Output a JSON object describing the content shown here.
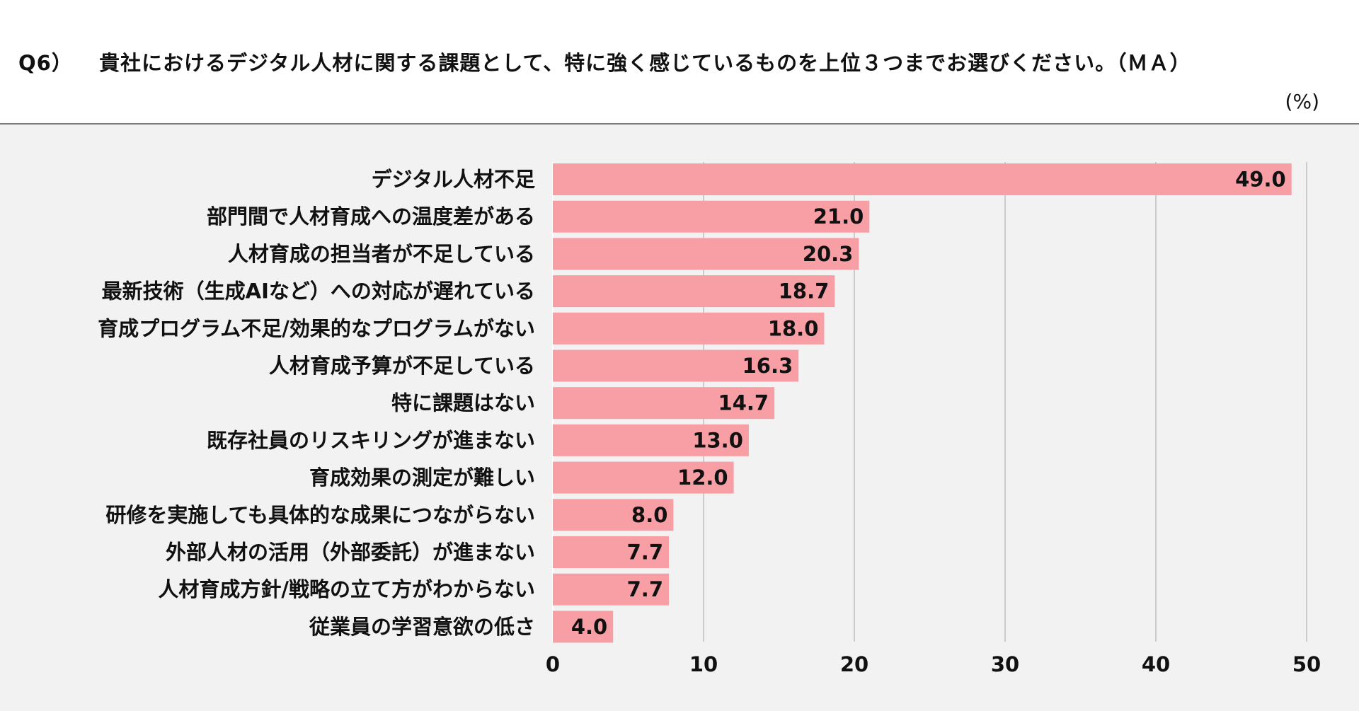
{
  "header": {
    "question_number": "Q6）",
    "question_text": "貴社におけるデジタル人材に関する課題として、特に強く感じているものを上位３つまでお選びください。（ＭＡ）",
    "unit": "(%)"
  },
  "colors": {
    "bar": "#f79fa5",
    "grid": "#bfbfbf",
    "background": "#f2f2f2"
  },
  "chart_data": {
    "type": "bar",
    "orientation": "horizontal",
    "categories": [
      "デジタル人材不足",
      "部門間で人材育成への温度差がある",
      "人材育成の担当者が不足している",
      "最新技術（生成AIなど）への対応が遅れている",
      "育成プログラム不足/効果的なプログラムがない",
      "人材育成予算が不足している",
      "特に課題はない",
      "既存社員のリスキリングが進まない",
      "育成効果の測定が難しい",
      "研修を実施しても具体的な成果につながらない",
      "外部人材の活用（外部委託）が進まない",
      "人材育成方針/戦略の立て方がわからない",
      "従業員の学習意欲の低さ"
    ],
    "values": [
      49.0,
      21.0,
      20.3,
      18.7,
      18.0,
      16.3,
      14.7,
      13.0,
      12.0,
      8.0,
      7.7,
      7.7,
      4.0
    ],
    "value_labels": [
      "49.0",
      "21.0",
      "20.3",
      "18.7",
      "18.0",
      "16.3",
      "14.7",
      "13.0",
      "12.0",
      "8.0",
      "7.7",
      "7.7",
      "4.0"
    ],
    "xlim": [
      0,
      50
    ],
    "xticks": [
      "0",
      "10",
      "20",
      "30",
      "40",
      "50"
    ],
    "grid": true
  }
}
